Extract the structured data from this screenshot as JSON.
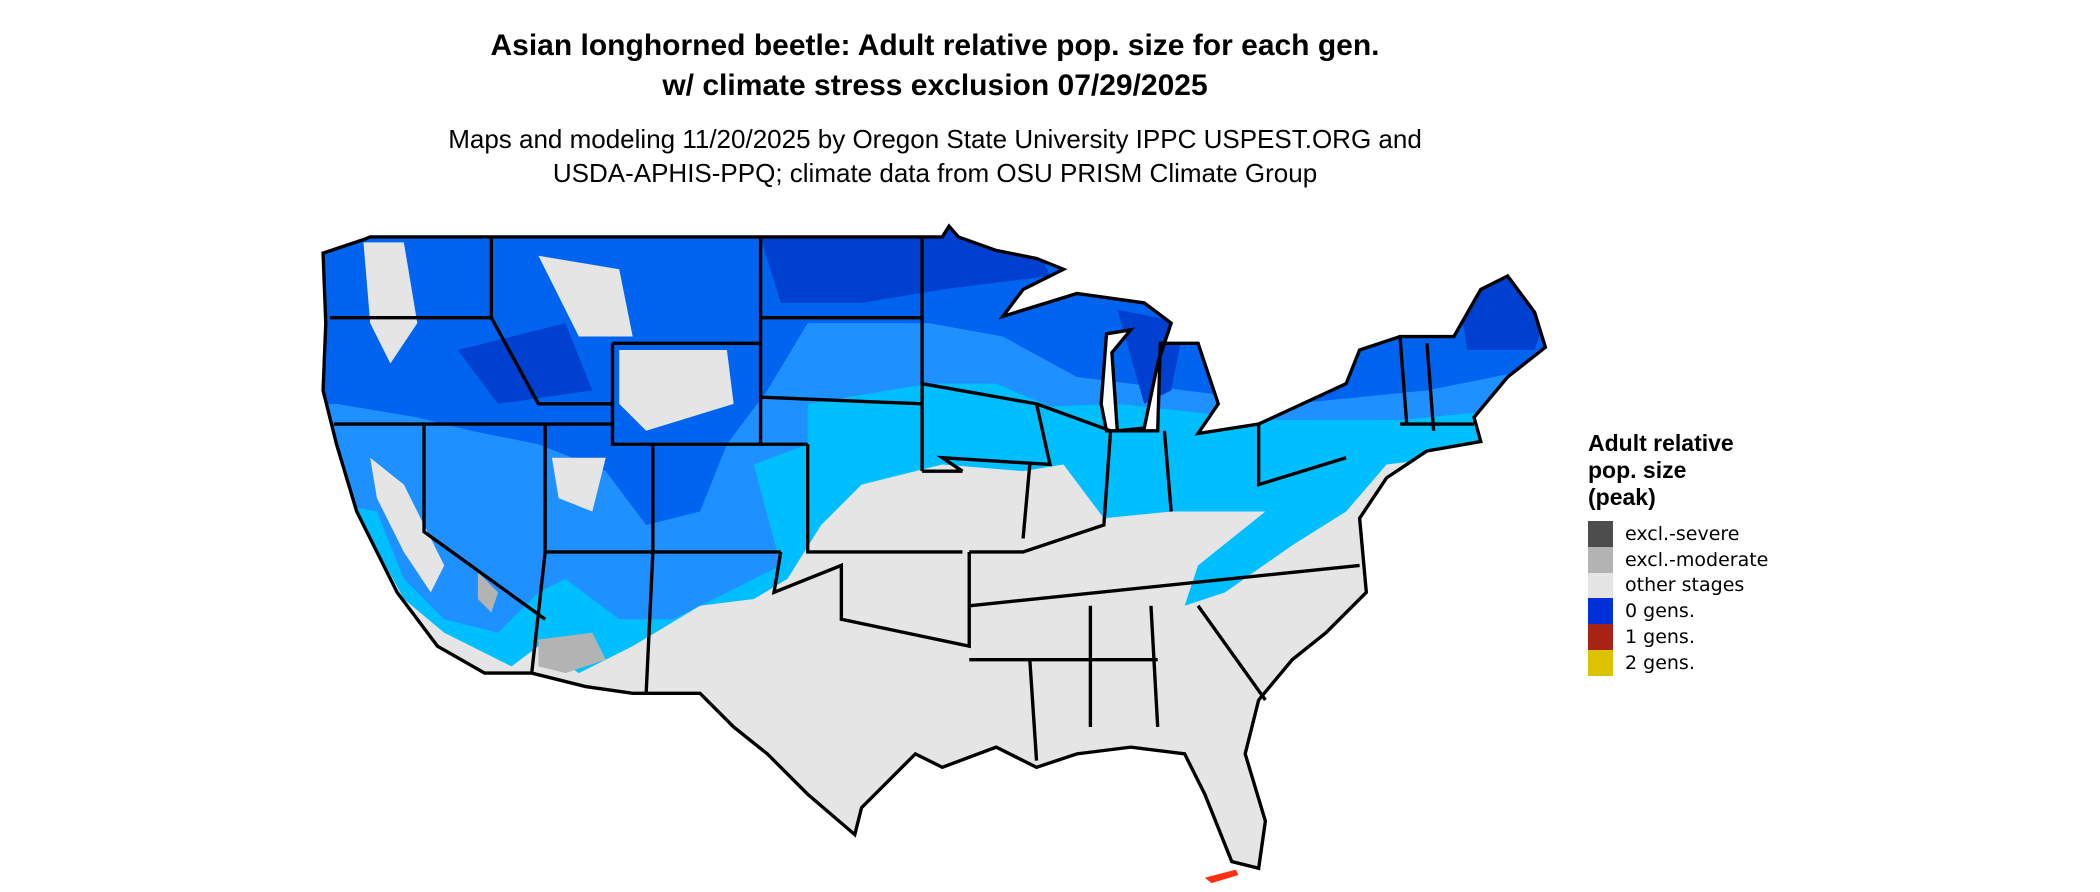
{
  "title_line1": "Asian longhorned beetle: Adult relative pop. size for each gen.",
  "title_line2": "w/ climate stress exclusion 07/29/2025",
  "subtitle_line1": "Maps and modeling 11/20/2025 by Oregon State University IPPC USPEST.ORG and",
  "subtitle_line2": "USDA-APHIS-PPQ; climate data from OSU PRISM Climate Group",
  "legend": {
    "title_line1": "Adult relative",
    "title_line2": "pop. size",
    "title_line3": "(peak)",
    "items": [
      {
        "label": "excl.-severe",
        "color": "#4d4d4d"
      },
      {
        "label": "excl.-moderate",
        "color": "#b3b3b3"
      },
      {
        "label": "other stages",
        "color": "#e5e5e5"
      },
      {
        "label": "0 gens.",
        "color": "#0030d8"
      },
      {
        "label": "1 gens.",
        "color": "#a82314"
      },
      {
        "label": "2 gens.",
        "color": "#dcc200"
      }
    ]
  },
  "map_colors": {
    "other_stages": "#e5e5e5",
    "cyan": "#00bfff",
    "blue_light": "#1e90ff",
    "blue_mid": "#0064f0",
    "blue_dark": "#0040d0",
    "excl_moderate": "#b3b3b3",
    "florida_keys": "#ff3010"
  }
}
